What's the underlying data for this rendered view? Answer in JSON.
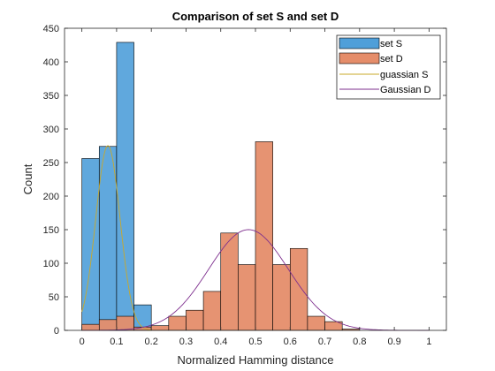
{
  "chart_data": {
    "type": "bar",
    "title": "Comparison of set S and set D",
    "xlabel": "Normalized Hamming distance",
    "ylabel": "Count",
    "xlim": [
      -0.05,
      1.05
    ],
    "ylim": [
      0,
      450
    ],
    "xticks": [
      "0",
      "0.1",
      "0.2",
      "0.3",
      "0.4",
      "0.5",
      "0.6",
      "0.7",
      "0.8",
      "0.9",
      "1"
    ],
    "yticks": [
      "0",
      "50",
      "100",
      "150",
      "200",
      "250",
      "300",
      "350",
      "400",
      "450"
    ],
    "grid": false,
    "legend_position": "top-right",
    "histograms": [
      {
        "name": "set S",
        "color": "#4f9fd9",
        "bin_edges": [
          0,
          0.05,
          0.1,
          0.15,
          0.2
        ],
        "counts": [
          256,
          274,
          429,
          38
        ]
      },
      {
        "name": "set D",
        "color": "#e58d6a",
        "bin_edges": [
          0,
          0.05,
          0.1,
          0.15,
          0.2,
          0.25,
          0.3,
          0.35,
          0.4,
          0.45,
          0.5,
          0.55,
          0.6,
          0.65,
          0.7,
          0.75,
          0.8
        ],
        "counts": [
          9,
          16,
          21,
          5,
          7,
          21,
          30,
          58,
          145,
          98,
          281,
          98,
          122,
          21,
          13,
          2
        ]
      }
    ],
    "curves": [
      {
        "name": "guassian S",
        "color": "#c9a82a",
        "mean": 0.075,
        "sd": 0.035,
        "peak": 275,
        "x_range": [
          0,
          0.2
        ]
      },
      {
        "name": "Gaussian D",
        "color": "#7e2f8e",
        "mean": 0.48,
        "sd": 0.115,
        "peak": 150,
        "x_range": [
          0,
          1
        ]
      }
    ],
    "legend": {
      "entries": [
        "set S",
        "set D",
        "guassian S",
        "Gaussian D"
      ]
    }
  }
}
